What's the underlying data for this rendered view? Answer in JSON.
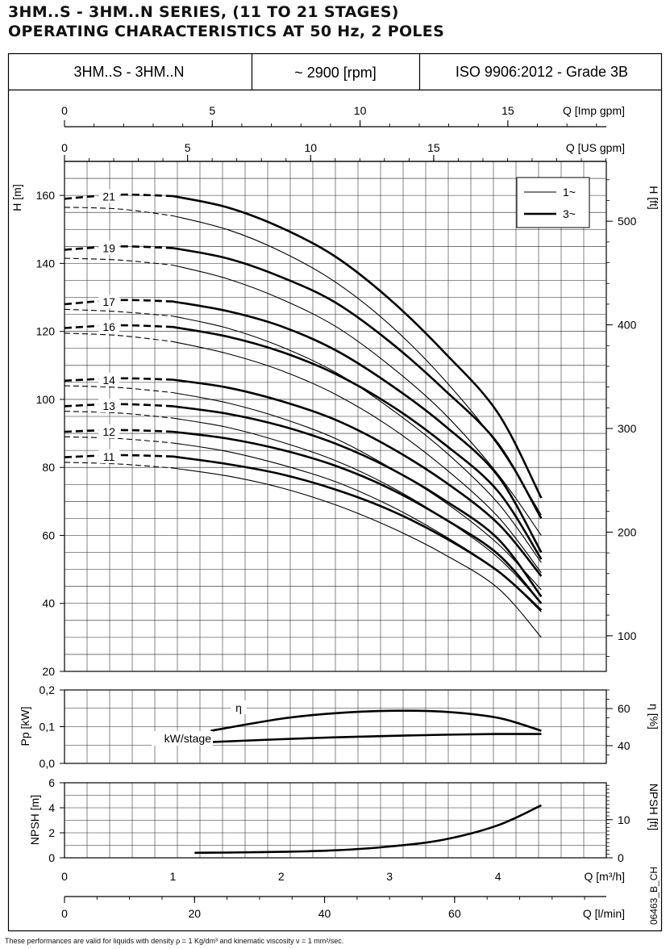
{
  "title": {
    "line1": "3HM..S - 3HM..N SERIES, (11 TO 21 STAGES)",
    "line2": "OPERATING CHARACTERISTICS AT 50 Hz, 2 POLES"
  },
  "header": {
    "model": "3HM..S - 3HM..N",
    "speed": "~ 2900 [rpm]",
    "standard": "ISO 9906:2012 - Grade 3B"
  },
  "doc_code": "06463_B_CH",
  "footnote": "These performances are valid for liquids with density ρ = 1 Kg/dm³ and kinematic viscosity ν = 1 mm²/sec.",
  "chart_data": [
    {
      "type": "line",
      "title": "",
      "xlabel": "Q [m³/h]",
      "ylabel": "H [m]",
      "ylabel_right": "H [ft]",
      "xlim": [
        0,
        5
      ],
      "ylim": [
        20,
        170
      ],
      "x_ticks": [
        "0",
        "1",
        "2",
        "3",
        "4"
      ],
      "y_ticks": [
        "20",
        "40",
        "60",
        "80",
        "100",
        "120",
        "140",
        "160"
      ],
      "y_right_ticks": [
        "100",
        "200",
        "300",
        "400",
        "500"
      ],
      "top_axes": [
        {
          "label": "Q [Imp gpm]",
          "ticks": [
            "0",
            "5",
            "10",
            "15"
          ]
        },
        {
          "label": "Q [US gpm]",
          "ticks": [
            "0",
            "5",
            "10",
            "15"
          ]
        }
      ],
      "bottom_axis_2": {
        "label": "Q [l/min]",
        "ticks": [
          "0",
          "20",
          "40",
          "60"
        ]
      },
      "grid": true,
      "legend": {
        "placement": "top-right",
        "entries": [
          "1~",
          "3~"
        ]
      },
      "series": [
        {
          "name": "21",
          "three_phase": [
            [
              0,
              159.0
            ],
            [
              0.5,
              160.2
            ],
            [
              1.0,
              159.8
            ],
            [
              1.5,
              156.5
            ],
            [
              2.0,
              150.5
            ],
            [
              2.5,
              142.0
            ],
            [
              3.0,
              129.5
            ],
            [
              3.5,
              114.0
            ],
            [
              4.0,
              96.0
            ],
            [
              4.4,
              71.0
            ]
          ],
          "single_phase": [
            [
              0,
              156.5
            ],
            [
              0.5,
              156.0
            ],
            [
              1.0,
              154.0
            ],
            [
              1.5,
              150.0
            ],
            [
              2.0,
              143.5
            ],
            [
              2.5,
              134.5
            ],
            [
              3.0,
              122.0
            ],
            [
              3.5,
              106.0
            ],
            [
              4.0,
              86.5
            ],
            [
              4.4,
              66.0
            ]
          ]
        },
        {
          "name": "19",
          "three_phase": [
            [
              0,
              144.0
            ],
            [
              0.5,
              145.0
            ],
            [
              1.0,
              144.5
            ],
            [
              1.5,
              141.5
            ],
            [
              2.0,
              136.0
            ],
            [
              2.5,
              128.5
            ],
            [
              3.0,
              117.0
            ],
            [
              3.5,
              103.0
            ],
            [
              4.0,
              87.0
            ],
            [
              4.4,
              65.0
            ]
          ],
          "single_phase": [
            [
              0,
              141.5
            ],
            [
              0.5,
              141.0
            ],
            [
              1.0,
              139.5
            ],
            [
              1.5,
              135.5
            ],
            [
              2.0,
              129.5
            ],
            [
              2.5,
              121.5
            ],
            [
              3.0,
              110.0
            ],
            [
              3.5,
              96.0
            ],
            [
              4.0,
              78.0
            ],
            [
              4.4,
              60.0
            ]
          ]
        },
        {
          "name": "17",
          "three_phase": [
            [
              0,
              128.0
            ],
            [
              0.5,
              129.2
            ],
            [
              1.0,
              128.8
            ],
            [
              1.5,
              126.0
            ],
            [
              2.0,
              121.5
            ],
            [
              2.5,
              114.5
            ],
            [
              3.0,
              104.5
            ],
            [
              3.5,
              92.5
            ],
            [
              4.0,
              77.5
            ],
            [
              4.4,
              55.0
            ]
          ],
          "single_phase": [
            [
              0,
              126.5
            ],
            [
              0.5,
              125.8
            ],
            [
              1.0,
              124.5
            ],
            [
              1.5,
              121.0
            ],
            [
              2.0,
              115.5
            ],
            [
              2.5,
              108.0
            ],
            [
              3.0,
              97.5
            ],
            [
              3.5,
              85.0
            ],
            [
              4.0,
              69.5
            ],
            [
              4.4,
              52.0
            ]
          ]
        },
        {
          "name": "16",
          "three_phase": [
            [
              0,
              121.0
            ],
            [
              0.5,
              121.8
            ],
            [
              1.0,
              121.3
            ],
            [
              1.5,
              118.5
            ],
            [
              2.0,
              114.0
            ],
            [
              2.5,
              107.5
            ],
            [
              3.0,
              98.5
            ],
            [
              3.5,
              87.0
            ],
            [
              4.0,
              73.0
            ],
            [
              4.4,
              53.0
            ]
          ],
          "single_phase": [
            [
              0,
              119.5
            ],
            [
              0.5,
              118.8
            ],
            [
              1.0,
              117.0
            ],
            [
              1.5,
              113.5
            ],
            [
              2.0,
              108.5
            ],
            [
              2.5,
              101.5
            ],
            [
              3.0,
              92.0
            ],
            [
              3.5,
              80.0
            ],
            [
              4.0,
              65.5
            ],
            [
              4.4,
              49.0
            ]
          ]
        },
        {
          "name": "14",
          "three_phase": [
            [
              0,
              105.5
            ],
            [
              0.5,
              106.2
            ],
            [
              1.0,
              105.8
            ],
            [
              1.5,
              103.5
            ],
            [
              2.0,
              99.5
            ],
            [
              2.5,
              94.0
            ],
            [
              3.0,
              86.0
            ],
            [
              3.5,
              76.0
            ],
            [
              4.0,
              63.5
            ],
            [
              4.4,
              48.0
            ]
          ],
          "single_phase": [
            [
              0,
              104.0
            ],
            [
              0.5,
              103.5
            ],
            [
              1.0,
              102.0
            ],
            [
              1.5,
              99.0
            ],
            [
              2.0,
              94.5
            ],
            [
              2.5,
              88.5
            ],
            [
              3.0,
              80.0
            ],
            [
              3.5,
              70.0
            ],
            [
              4.0,
              57.5
            ],
            [
              4.4,
              44.0
            ]
          ]
        },
        {
          "name": "13",
          "three_phase": [
            [
              0,
              98.0
            ],
            [
              0.5,
              98.6
            ],
            [
              1.0,
              98.0
            ],
            [
              1.5,
              95.8
            ],
            [
              2.0,
              92.2
            ],
            [
              2.5,
              87.0
            ],
            [
              3.0,
              79.8
            ],
            [
              3.5,
              70.5
            ],
            [
              4.0,
              59.0
            ],
            [
              4.4,
              42.0
            ]
          ],
          "single_phase": [
            [
              0,
              96.5
            ],
            [
              0.5,
              96.0
            ],
            [
              1.0,
              94.5
            ],
            [
              1.5,
              91.8
            ],
            [
              2.0,
              87.5
            ],
            [
              2.5,
              82.0
            ],
            [
              3.0,
              74.5
            ],
            [
              3.5,
              65.0
            ],
            [
              4.0,
              53.5
            ],
            [
              4.4,
              40.0
            ]
          ]
        },
        {
          "name": "12",
          "three_phase": [
            [
              0,
              90.5
            ],
            [
              0.5,
              91.0
            ],
            [
              1.0,
              90.5
            ],
            [
              1.5,
              88.5
            ],
            [
              2.0,
              85.2
            ],
            [
              2.5,
              80.5
            ],
            [
              3.0,
              73.8
            ],
            [
              3.5,
              65.0
            ],
            [
              4.0,
              54.5
            ],
            [
              4.4,
              40.0
            ]
          ],
          "single_phase": [
            [
              0,
              89.0
            ],
            [
              0.5,
              88.5
            ],
            [
              1.0,
              87.2
            ],
            [
              1.5,
              84.7
            ],
            [
              2.0,
              80.8
            ],
            [
              2.5,
              75.8
            ],
            [
              3.0,
              68.8
            ],
            [
              3.5,
              60.0
            ],
            [
              4.0,
              49.5
            ],
            [
              4.4,
              37.5
            ]
          ]
        },
        {
          "name": "11",
          "three_phase": [
            [
              0,
              83.0
            ],
            [
              0.5,
              83.6
            ],
            [
              1.0,
              83.2
            ],
            [
              1.5,
              81.0
            ],
            [
              2.0,
              78.0
            ],
            [
              2.5,
              73.5
            ],
            [
              3.0,
              67.5
            ],
            [
              3.5,
              59.5
            ],
            [
              4.0,
              49.5
            ],
            [
              4.4,
              38.0
            ]
          ],
          "single_phase": [
            [
              0,
              81.5
            ],
            [
              0.5,
              81.0
            ],
            [
              1.0,
              79.8
            ],
            [
              1.5,
              77.5
            ],
            [
              2.0,
              74.0
            ],
            [
              2.5,
              69.0
            ],
            [
              3.0,
              62.5
            ],
            [
              3.5,
              54.5
            ],
            [
              4.0,
              44.5
            ],
            [
              4.4,
              30.0
            ]
          ]
        }
      ]
    },
    {
      "type": "line",
      "title": "",
      "xlabel": "Q [m³/h]",
      "ylabel": "Pp [kW]",
      "ylabel_right": "η [%]",
      "xlim": [
        0,
        5
      ],
      "ylim": [
        0,
        0.2
      ],
      "y_ticks": [
        "0,0",
        "0,1",
        "0,2"
      ],
      "y_right_ticks": [
        "40",
        "60"
      ],
      "grid": true,
      "series": [
        {
          "name": "η",
          "axis": "right",
          "points": [
            [
              1.35,
              48.0
            ],
            [
              2.0,
              54.5
            ],
            [
              2.5,
              57.5
            ],
            [
              3.0,
              58.8
            ],
            [
              3.5,
              58.3
            ],
            [
              4.0,
              55.0
            ],
            [
              4.4,
              48.0
            ]
          ]
        },
        {
          "name": "kW/stage",
          "axis": "left",
          "points": [
            [
              1.35,
              0.058
            ],
            [
              2.0,
              0.066
            ],
            [
              2.5,
              0.071
            ],
            [
              3.0,
              0.075
            ],
            [
              3.5,
              0.078
            ],
            [
              4.0,
              0.08
            ],
            [
              4.4,
              0.08
            ]
          ]
        }
      ]
    },
    {
      "type": "line",
      "title": "",
      "xlabel": "Q [m³/h]",
      "ylabel": "NPSH [m]",
      "ylabel_right": "NPSH [ft]",
      "xlim": [
        0,
        5
      ],
      "ylim": [
        0,
        6
      ],
      "y_ticks": [
        "0",
        "2",
        "4",
        "6"
      ],
      "y_right_ticks": [
        "0",
        "10"
      ],
      "grid": true,
      "series": [
        {
          "name": "",
          "points": [
            [
              1.2,
              0.4
            ],
            [
              1.5,
              0.42
            ],
            [
              2.0,
              0.48
            ],
            [
              2.5,
              0.6
            ],
            [
              3.0,
              0.9
            ],
            [
              3.5,
              1.45
            ],
            [
              4.0,
              2.6
            ],
            [
              4.4,
              4.2
            ]
          ]
        }
      ]
    }
  ]
}
